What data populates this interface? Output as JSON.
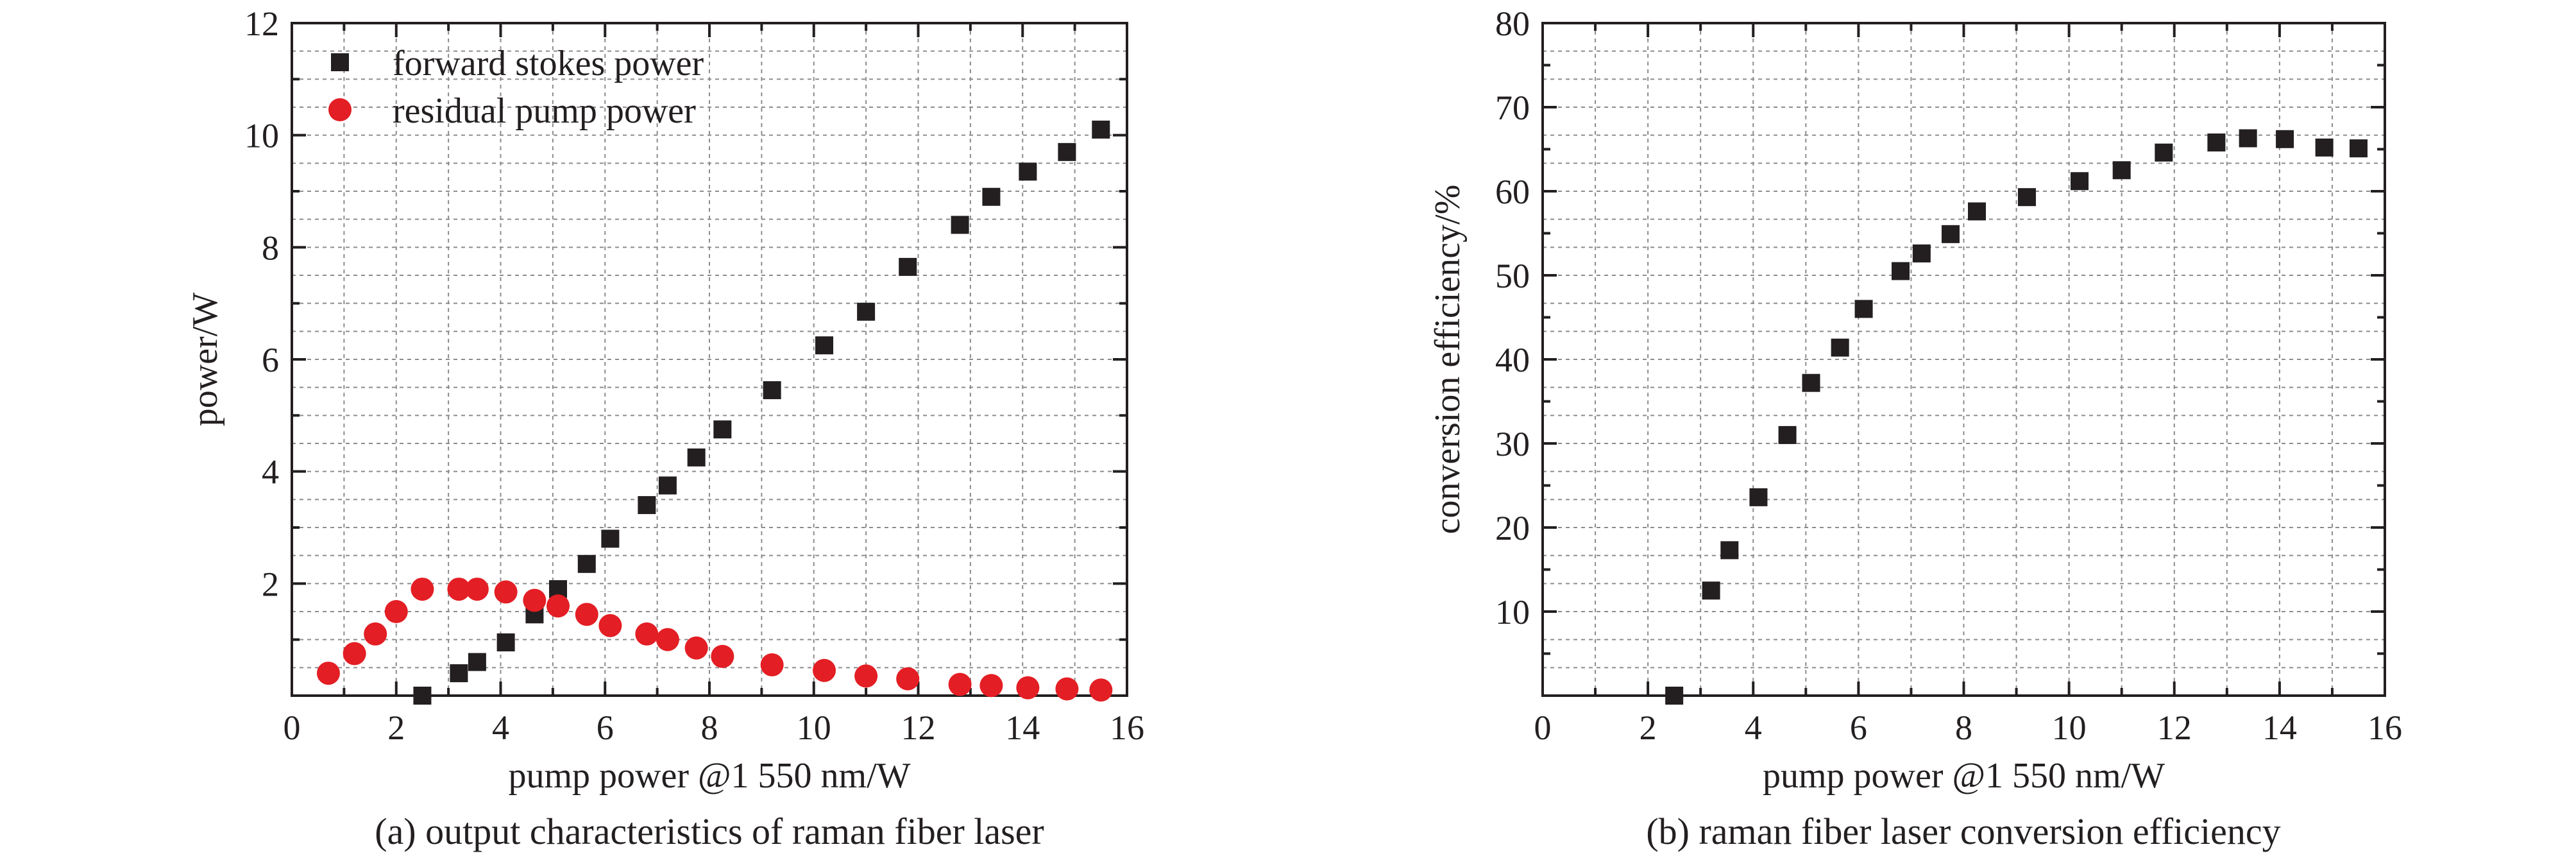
{
  "colors": {
    "square_marker": "#231f20",
    "circle_marker": "#e31e24",
    "grid": "#8c8c8c",
    "axis": "#231f20"
  },
  "chart_data": [
    {
      "type": "scatter",
      "caption": "(a) output characteristics of raman fiber laser",
      "xlabel": "pump power @1 550 nm/W",
      "ylabel": "power/W",
      "xlim": [
        0,
        16
      ],
      "ylim": [
        0,
        12
      ],
      "x_ticks": [
        "0",
        "2",
        "4",
        "6",
        "8",
        "10",
        "12",
        "14",
        "16"
      ],
      "y_ticks": [
        "2",
        "4",
        "6",
        "8",
        "10",
        "12"
      ],
      "grid": true,
      "legend_position": "top-left",
      "series": [
        {
          "name": "forward stokes power",
          "marker": "square",
          "color": "#231f20",
          "x": [
            2.5,
            3.2,
            3.55,
            4.1,
            4.65,
            5.1,
            5.65,
            6.1,
            6.8,
            7.2,
            7.75,
            8.25,
            9.2,
            10.2,
            11.0,
            11.8,
            12.8,
            13.4,
            14.1,
            14.85,
            15.5
          ],
          "y": [
            0.0,
            0.4,
            0.6,
            0.95,
            1.45,
            1.9,
            2.35,
            2.8,
            3.4,
            3.75,
            4.25,
            4.75,
            5.45,
            6.25,
            6.85,
            7.65,
            8.4,
            8.9,
            9.35,
            9.7,
            10.1
          ]
        },
        {
          "name": "residual pump power",
          "marker": "circle",
          "color": "#e31e24",
          "x": [
            0.7,
            1.2,
            1.6,
            2.0,
            2.5,
            3.2,
            3.55,
            4.1,
            4.65,
            5.1,
            5.65,
            6.1,
            6.8,
            7.2,
            7.75,
            8.25,
            9.2,
            10.2,
            11.0,
            11.8,
            12.8,
            13.4,
            14.1,
            14.85,
            15.5
          ],
          "y": [
            0.4,
            0.75,
            1.1,
            1.5,
            1.9,
            1.9,
            1.9,
            1.85,
            1.7,
            1.6,
            1.45,
            1.25,
            1.1,
            1.0,
            0.85,
            0.7,
            0.55,
            0.45,
            0.35,
            0.3,
            0.2,
            0.18,
            0.14,
            0.12,
            0.1
          ]
        }
      ]
    },
    {
      "type": "scatter",
      "caption": "(b) raman fiber laser conversion efficiency",
      "xlabel": "pump power @1 550 nm/W",
      "ylabel": "conversion efficiency/%",
      "xlim": [
        0,
        16
      ],
      "ylim": [
        0,
        80
      ],
      "x_ticks": [
        "0",
        "2",
        "4",
        "6",
        "8",
        "10",
        "12",
        "14",
        "16"
      ],
      "y_ticks": [
        "10",
        "20",
        "30",
        "40",
        "50",
        "60",
        "70",
        "80"
      ],
      "grid": true,
      "series": [
        {
          "marker": "square",
          "color": "#231f20",
          "x": [
            2.5,
            3.2,
            3.55,
            4.1,
            4.65,
            5.1,
            5.65,
            6.1,
            6.8,
            7.2,
            7.75,
            8.25,
            9.2,
            10.2,
            11.0,
            11.8,
            12.8,
            13.4,
            14.1,
            14.85,
            15.5
          ],
          "y": [
            0.0,
            12.5,
            17.3,
            23.6,
            31.0,
            37.2,
            41.4,
            46.0,
            50.5,
            52.6,
            54.9,
            57.6,
            59.3,
            61.2,
            62.5,
            64.6,
            65.8,
            66.3,
            66.2,
            65.2,
            65.1
          ]
        }
      ]
    }
  ]
}
